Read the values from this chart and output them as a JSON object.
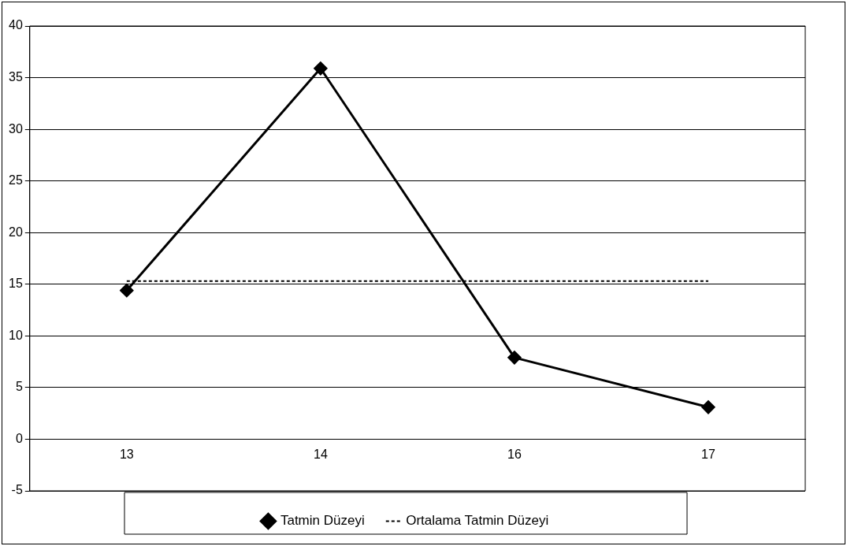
{
  "chart_data": {
    "type": "line",
    "categories": [
      "13",
      "14",
      "16",
      "17"
    ],
    "series": [
      {
        "name": "Tatmin Düzeyi",
        "color": "#000000",
        "values": [
          14.4,
          35.9,
          7.9,
          3.1
        ],
        "marker": "diamond",
        "line_style": "solid"
      },
      {
        "name": "Ortalama Tatmin Düzeyi",
        "color": "#000000",
        "values": [
          15.3,
          15.3,
          15.3,
          15.3
        ],
        "marker": "none",
        "line_style": "dotted"
      }
    ],
    "ylim": [
      -5,
      40
    ],
    "yticks": [
      -5,
      0,
      5,
      10,
      15,
      20,
      25,
      30,
      35,
      40
    ],
    "grid": "y",
    "legend": "bottom"
  }
}
